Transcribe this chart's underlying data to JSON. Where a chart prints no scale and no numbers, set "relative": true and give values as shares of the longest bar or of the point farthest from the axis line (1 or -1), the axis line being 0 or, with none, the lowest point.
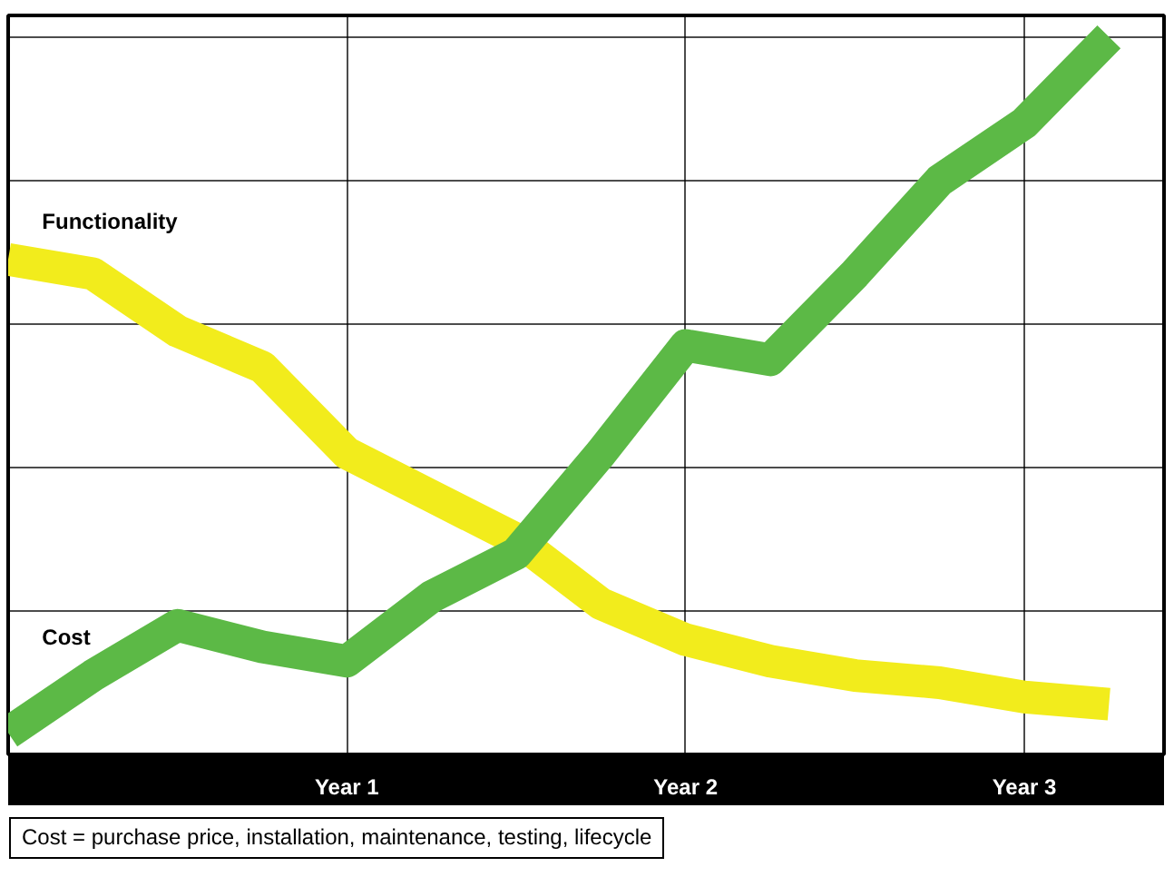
{
  "chart_data": {
    "type": "line",
    "relative": true,
    "categories": [
      null,
      null,
      null,
      null,
      "Year 1",
      null,
      null,
      null,
      "Year 2",
      null,
      null,
      null,
      "Year 3",
      null
    ],
    "series": [
      {
        "name": "Functionality",
        "color": "#f2ec1c",
        "values": [
          0.69,
          0.67,
          0.59,
          0.54,
          0.42,
          0.36,
          0.3,
          0.21,
          0.16,
          0.13,
          0.11,
          0.1,
          0.08,
          0.07
        ]
      },
      {
        "name": "Cost",
        "color": "#5cb946",
        "values": [
          0.03,
          0.11,
          0.18,
          0.15,
          0.13,
          0.22,
          0.28,
          0.42,
          0.57,
          0.55,
          0.67,
          0.8,
          0.88,
          1.0
        ]
      }
    ],
    "grid": true,
    "legend": false,
    "line_style": "solid",
    "marker": "none",
    "annotations": [
      "Cost = purchase price, installation, maintenance, testing, lifecycle"
    ]
  }
}
